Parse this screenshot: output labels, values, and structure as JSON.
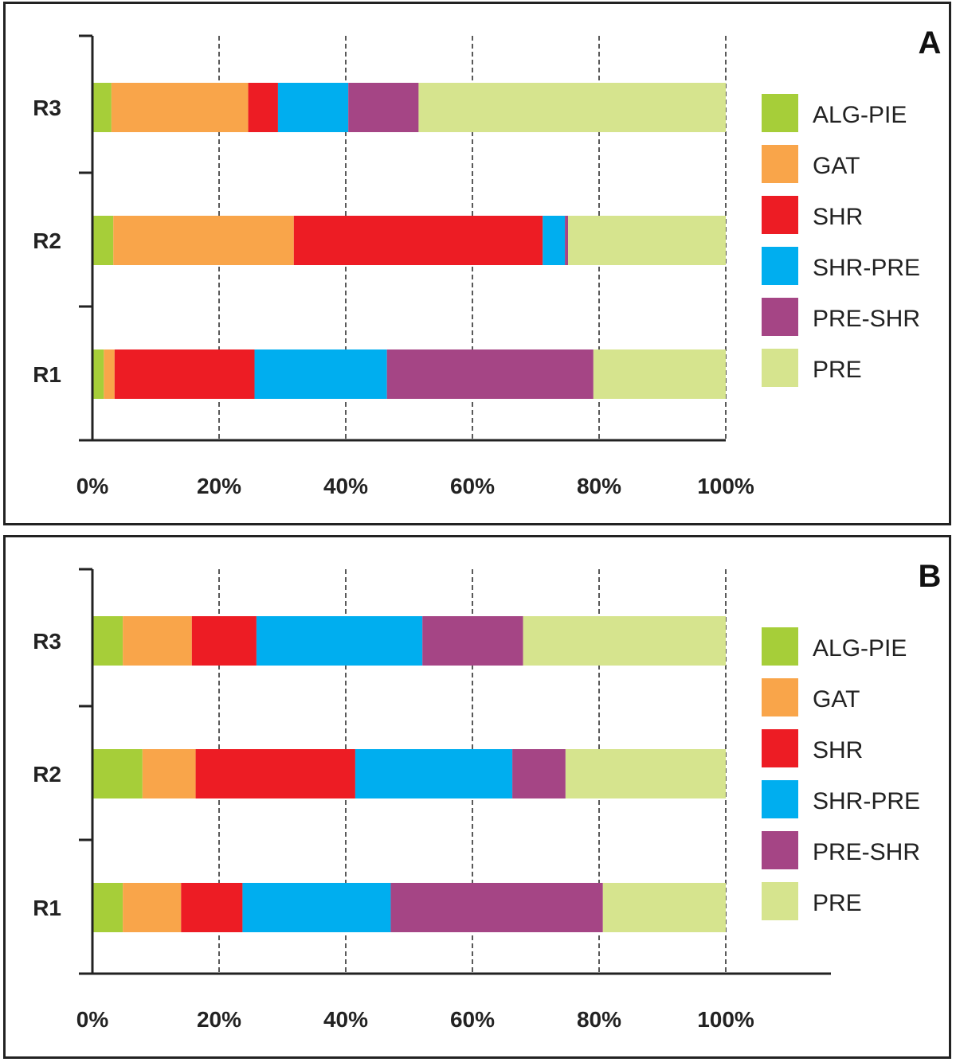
{
  "legend": [
    "ALG-PIE",
    "GAT",
    "SHR",
    "SHR-PRE",
    "PRE-SHR",
    "PRE"
  ],
  "colors": {
    "ALG-PIE": "#a6ce39",
    "GAT": "#f9a54a",
    "SHR": "#ed1c24",
    "SHR-PRE": "#00aeef",
    "PRE-SHR": "#a54585",
    "PRE": "#d6e48e"
  },
  "chart_data": [
    {
      "panel": "A",
      "type": "bar",
      "orientation": "horizontal",
      "stacked": true,
      "categories": [
        "R3",
        "R2",
        "R1"
      ],
      "xlim": [
        0,
        100
      ],
      "xticks": [
        "0%",
        "20%",
        "40%",
        "60%",
        "80%",
        "100%"
      ],
      "grid": "vertical dashed",
      "legend_position": "right",
      "series": [
        {
          "name": "ALG-PIE",
          "values": [
            3,
            3.3,
            1.8
          ]
        },
        {
          "name": "GAT",
          "values": [
            21.6,
            28.5,
            1.7
          ]
        },
        {
          "name": "SHR",
          "values": [
            4.7,
            39.3,
            22.1
          ]
        },
        {
          "name": "SHR-PRE",
          "values": [
            11.1,
            3.5,
            20.9
          ]
        },
        {
          "name": "PRE-SHR",
          "values": [
            11.1,
            0.5,
            32.6
          ]
        },
        {
          "name": "PRE",
          "values": [
            48.5,
            24.9,
            20.9
          ]
        }
      ]
    },
    {
      "panel": "B",
      "type": "bar",
      "orientation": "horizontal",
      "stacked": true,
      "categories": [
        "R3",
        "R2",
        "R1"
      ],
      "xlim": [
        0,
        100
      ],
      "xticks": [
        "0%",
        "20%",
        "40%",
        "60%",
        "80%",
        "100%"
      ],
      "grid": "vertical dashed",
      "legend_position": "right",
      "series": [
        {
          "name": "ALG-PIE",
          "values": [
            4.8,
            7.9,
            4.8
          ]
        },
        {
          "name": "GAT",
          "values": [
            10.9,
            8.4,
            9.2
          ]
        },
        {
          "name": "SHR",
          "values": [
            10.2,
            25.2,
            9.7
          ]
        },
        {
          "name": "SHR-PRE",
          "values": [
            26.2,
            24.8,
            23.4
          ]
        },
        {
          "name": "PRE-SHR",
          "values": [
            15.9,
            8.4,
            33.5
          ]
        },
        {
          "name": "PRE",
          "values": [
            32.0,
            25.3,
            19.4
          ]
        }
      ]
    }
  ]
}
